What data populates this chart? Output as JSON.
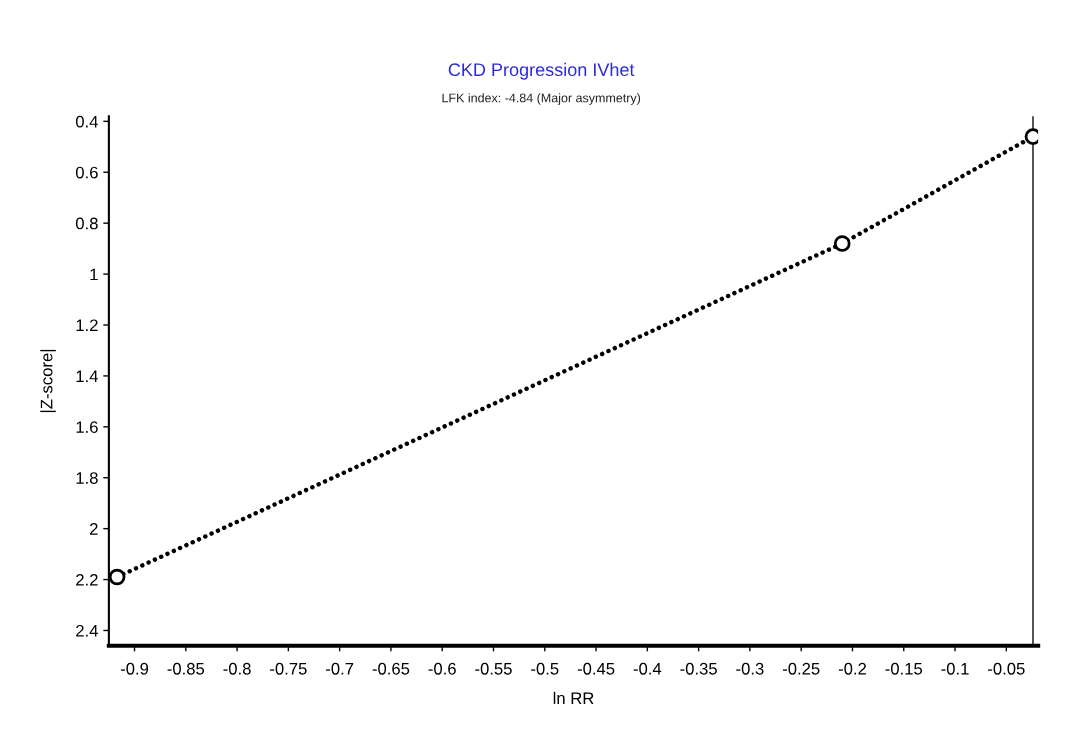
{
  "chart_data": {
    "type": "line",
    "title": "CKD Progression IVhet",
    "subtitle": "LFK index: -4.84 (Major asymmetry)",
    "xlabel": "ln RR",
    "ylabel": "|Z-score|",
    "x": [
      -0.917,
      -0.21,
      -0.024
    ],
    "series": [
      {
        "color": "#000000",
        "values": [
          2.19,
          0.88,
          0.46
        ]
      }
    ],
    "xlim": [
      -0.925,
      -0.019
    ],
    "ylim": [
      2.46,
      0.38
    ],
    "xticks": [
      -0.9,
      -0.85,
      -0.8,
      -0.75,
      -0.7,
      -0.65,
      -0.6,
      -0.55,
      -0.5,
      -0.45,
      -0.4,
      -0.35,
      -0.3,
      -0.25,
      -0.2,
      -0.15,
      -0.1,
      -0.05
    ],
    "yticks": [
      0.4,
      0.6,
      0.8,
      1,
      1.2,
      1.4,
      1.6,
      1.8,
      2,
      2.2,
      2.4
    ],
    "ref_lines": [
      {
        "axis": "x",
        "value": -0.024,
        "color": "#333333",
        "line_style": "solid"
      }
    ],
    "marker": "circle",
    "line_style": "dotted",
    "grid": false,
    "legend": false
  }
}
